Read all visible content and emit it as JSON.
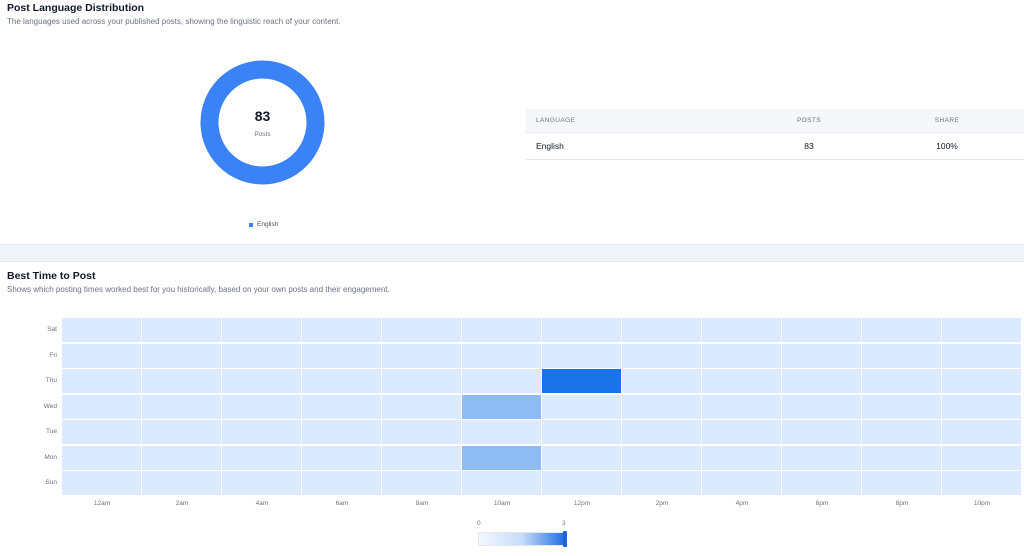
{
  "language_section": {
    "title": "Post Language Distribution",
    "subtitle": "The languages used across your published posts, showing the linguistic reach of your content.",
    "donut": {
      "value": "83",
      "label": "Posts",
      "color": "#3b82f6"
    },
    "legend": [
      "English"
    ],
    "table": {
      "headers": [
        "LANGUAGE",
        "POSTS",
        "SHARE"
      ],
      "rows": [
        {
          "language": "English",
          "posts": "83",
          "share": "100%"
        }
      ]
    }
  },
  "time_section": {
    "title": "Best Time to Post",
    "subtitle": "Shows which posting times worked best for you historically, based on your own posts and their engagement.",
    "scale": {
      "min": "0",
      "max": "3"
    }
  },
  "chart_data": {
    "type": "heatmap",
    "rows": [
      "Sat",
      "Fri",
      "Thu",
      "Wed",
      "Tue",
      "Mon",
      "Sun"
    ],
    "columns": [
      "12am",
      "2am",
      "4am",
      "6am",
      "8am",
      "10am",
      "12pm",
      "2pm",
      "4pm",
      "6pm",
      "8pm",
      "10pm"
    ],
    "values": [
      [
        0,
        0,
        0,
        0,
        0,
        0,
        0,
        0,
        0,
        0,
        0,
        0
      ],
      [
        0,
        0,
        0,
        0,
        0,
        0,
        0,
        0,
        0,
        0,
        0,
        0
      ],
      [
        0,
        0,
        0,
        0,
        0,
        0,
        3,
        0,
        0,
        0,
        0,
        0
      ],
      [
        0,
        0,
        0,
        0,
        0,
        1,
        0,
        0,
        0,
        0,
        0,
        0
      ],
      [
        0,
        0,
        0,
        0,
        0,
        0,
        0,
        0,
        0,
        0,
        0,
        0
      ],
      [
        0,
        0,
        0,
        0,
        0,
        1,
        0,
        0,
        0,
        0,
        0,
        0
      ],
      [
        0,
        0,
        0,
        0,
        0,
        0,
        0,
        0,
        0,
        0,
        0,
        0
      ]
    ],
    "scale": [
      0,
      3
    ],
    "colors": {
      "low": "#dbeafe",
      "high": "#1a73e8"
    }
  }
}
